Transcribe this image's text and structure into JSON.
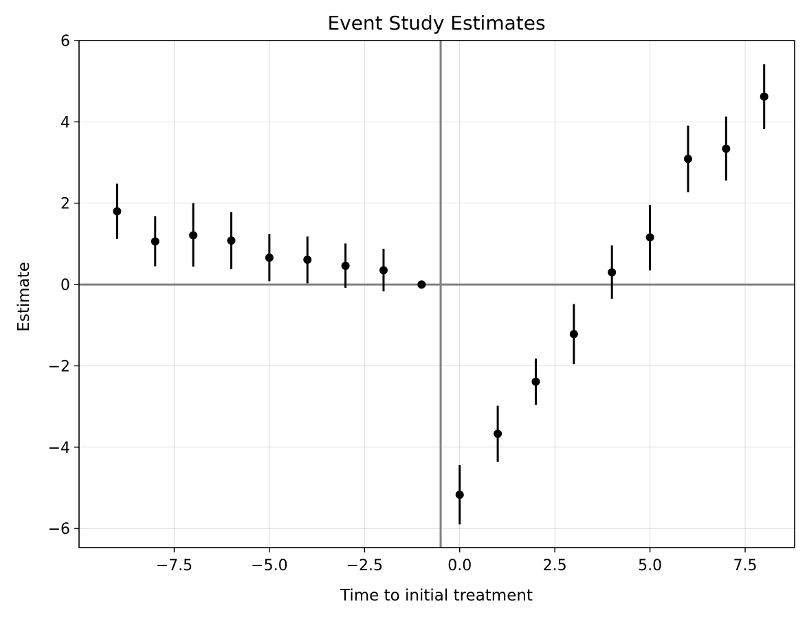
{
  "chart_data": {
    "type": "scatter",
    "title": "Event Study Estimates",
    "xlabel": "Time to initial treatment",
    "ylabel": "Estimate",
    "xlim": [
      -10.0,
      8.8
    ],
    "ylim": [
      -6.47,
      6.0
    ],
    "xticks": [
      -7.5,
      -5.0,
      -2.5,
      0.0,
      2.5,
      5.0,
      7.5
    ],
    "xtick_labels": [
      "−7.5",
      "−5.0",
      "−2.5",
      "0.0",
      "2.5",
      "5.0",
      "7.5"
    ],
    "yticks": [
      -6,
      -4,
      -2,
      0,
      2,
      4,
      6
    ],
    "ytick_labels": [
      "−6",
      "−4",
      "−2",
      "0",
      "2",
      "4",
      "6"
    ],
    "grid": true,
    "reference_lines": {
      "horizontal_y": 0.0,
      "vertical_x": -0.5,
      "color": "#808080"
    },
    "marker_color": "#000000",
    "points": [
      {
        "x": -9,
        "y": 1.8,
        "ci": [
          1.12,
          2.48
        ]
      },
      {
        "x": -8,
        "y": 1.06,
        "ci": [
          0.45,
          1.68
        ]
      },
      {
        "x": -7,
        "y": 1.21,
        "ci": [
          0.44,
          2.0
        ]
      },
      {
        "x": -6,
        "y": 1.08,
        "ci": [
          0.38,
          1.78
        ]
      },
      {
        "x": -5,
        "y": 0.66,
        "ci": [
          0.08,
          1.24
        ]
      },
      {
        "x": -4,
        "y": 0.61,
        "ci": [
          0.03,
          1.18
        ]
      },
      {
        "x": -3,
        "y": 0.46,
        "ci": [
          -0.08,
          1.01
        ]
      },
      {
        "x": -2,
        "y": 0.35,
        "ci": [
          -0.17,
          0.88
        ]
      },
      {
        "x": -1,
        "y": 0.0,
        "ci": [
          0.0,
          0.0
        ]
      },
      {
        "x": 0,
        "y": -5.17,
        "ci": [
          -5.9,
          -4.44
        ]
      },
      {
        "x": 1,
        "y": -3.67,
        "ci": [
          -4.36,
          -2.98
        ]
      },
      {
        "x": 2,
        "y": -2.39,
        "ci": [
          -2.96,
          -1.82
        ]
      },
      {
        "x": 3,
        "y": -1.22,
        "ci": [
          -1.96,
          -0.48
        ]
      },
      {
        "x": 4,
        "y": 0.3,
        "ci": [
          -0.35,
          0.96
        ]
      },
      {
        "x": 5,
        "y": 1.16,
        "ci": [
          0.35,
          1.96
        ]
      },
      {
        "x": 6,
        "y": 3.09,
        "ci": [
          2.27,
          3.91
        ]
      },
      {
        "x": 7,
        "y": 3.34,
        "ci": [
          2.56,
          4.13
        ]
      },
      {
        "x": 8,
        "y": 4.62,
        "ci": [
          3.82,
          5.42
        ]
      }
    ]
  }
}
